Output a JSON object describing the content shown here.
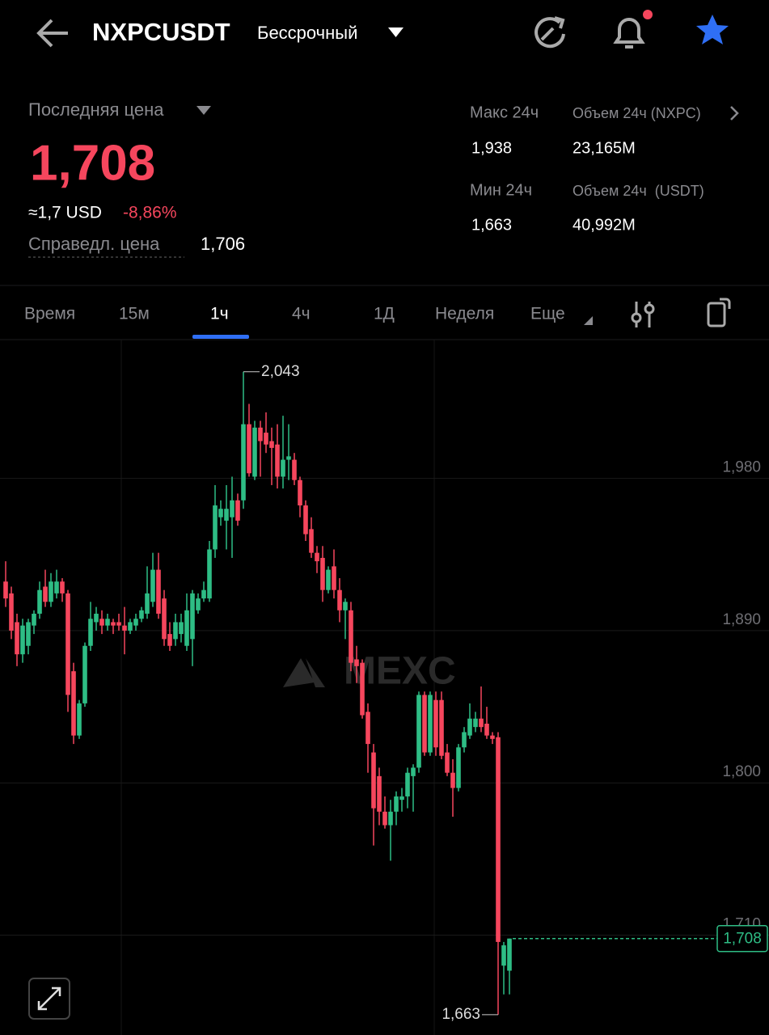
{
  "header": {
    "symbol": "NXPCUSDT",
    "contract": "Бессрочный"
  },
  "price": {
    "label": "Последняя цена",
    "last": "1,708",
    "usd": "≈1,7 USD",
    "change": "-8,86%",
    "fair_label": "Справедл. цена",
    "fair": "1,706"
  },
  "stats": [
    {
      "label": "Макс 24ч",
      "value": "1,938"
    },
    {
      "label": "Объем 24ч (NXPC)",
      "value": "23,165M"
    },
    {
      "label": "Мин 24ч",
      "value": "1,663"
    },
    {
      "label": "Объем 24ч  (USDT)",
      "value": "40,992M"
    }
  ],
  "tabs": [
    "Время",
    "15м",
    "1ч",
    "4ч",
    "1Д",
    "Неделя",
    "Еще"
  ],
  "chart_data": {
    "type": "candlestick",
    "watermark": "MEXC",
    "grid": true,
    "up_color": "#2ebd85",
    "down_color": "#f6465d",
    "ylim": [
      1.651,
      2.062
    ],
    "yticks": [
      {
        "value": 1.71,
        "label": "1,710"
      },
      {
        "value": 1.8,
        "label": "1,800"
      },
      {
        "value": 1.89,
        "label": "1,890"
      },
      {
        "value": 1.98,
        "label": "1,980"
      }
    ],
    "open": [
      1.919,
      1.912,
      1.895,
      1.876,
      1.881,
      1.893,
      1.9,
      1.916,
      1.907,
      1.912,
      1.919,
      1.912,
      1.866,
      1.828,
      1.847,
      1.881,
      1.895,
      1.897,
      1.893,
      1.895,
      1.895,
      1.893,
      1.89,
      1.893,
      1.897,
      1.9,
      1.907,
      1.926,
      1.909,
      1.888,
      1.885,
      1.888,
      1.881,
      1.885,
      1.902,
      1.909,
      1.909,
      1.938,
      1.957,
      1.955,
      1.957,
      1.967,
      1.967,
      2.012,
      1.981,
      2.01,
      2.007,
      2.002,
      2.0,
      1.981,
      1.991,
      1.991,
      1.979,
      1.964,
      1.95,
      1.936,
      1.933,
      1.914,
      1.928,
      1.914,
      1.902,
      1.902,
      1.873,
      1.871,
      1.842,
      1.818,
      1.804,
      1.783,
      1.775,
      1.783,
      1.79,
      1.792,
      1.804,
      1.809,
      1.852,
      1.818,
      1.849,
      1.849,
      1.818,
      1.806,
      1.797,
      1.821,
      1.828,
      1.833,
      1.838,
      1.835,
      1.828,
      1.827,
      1.692,
      1.689
    ],
    "high": [
      1.931,
      1.916,
      1.9,
      1.897,
      1.897,
      1.902,
      1.919,
      1.926,
      1.924,
      1.926,
      1.921,
      1.914,
      1.871,
      1.849,
      1.883,
      1.907,
      1.904,
      1.902,
      1.9,
      1.897,
      1.9,
      1.904,
      1.897,
      1.9,
      1.904,
      1.928,
      1.936,
      1.936,
      1.914,
      1.895,
      1.9,
      1.9,
      1.912,
      1.914,
      1.912,
      1.919,
      1.943,
      1.976,
      1.967,
      1.976,
      1.981,
      1.971,
      2.043,
      2.024,
      2.014,
      2.014,
      2.019,
      2.01,
      2.012,
      2.017,
      2.012,
      1.995,
      1.981,
      1.967,
      1.957,
      1.94,
      1.94,
      1.928,
      1.938,
      1.921,
      1.909,
      1.907,
      1.881,
      1.873,
      1.847,
      1.823,
      1.809,
      1.792,
      1.79,
      1.795,
      1.797,
      1.809,
      1.811,
      1.854,
      1.854,
      1.854,
      1.854,
      1.854,
      1.823,
      1.814,
      1.823,
      1.833,
      1.847,
      1.842,
      1.857,
      1.845,
      1.83,
      1.83,
      1.706,
      1.708
    ],
    "low": [
      1.904,
      1.885,
      1.869,
      1.871,
      1.876,
      1.888,
      1.897,
      1.904,
      1.904,
      1.909,
      1.907,
      1.842,
      1.823,
      1.826,
      1.845,
      1.878,
      1.89,
      1.888,
      1.89,
      1.888,
      1.89,
      1.876,
      1.888,
      1.89,
      1.895,
      1.897,
      1.904,
      1.897,
      1.881,
      1.878,
      1.881,
      1.883,
      1.878,
      1.869,
      1.9,
      1.907,
      1.907,
      1.933,
      1.952,
      1.938,
      1.933,
      1.952,
      1.962,
      1.981,
      1.979,
      1.981,
      1.995,
      1.976,
      1.974,
      1.974,
      1.979,
      1.976,
      1.957,
      1.943,
      1.933,
      1.924,
      1.907,
      1.912,
      1.909,
      1.895,
      1.885,
      1.866,
      1.859,
      1.838,
      1.806,
      1.763,
      1.775,
      1.773,
      1.754,
      1.775,
      1.783,
      1.785,
      1.783,
      1.806,
      1.816,
      1.816,
      1.816,
      1.814,
      1.804,
      1.78,
      1.795,
      1.818,
      1.826,
      1.83,
      1.83,
      1.826,
      1.823,
      1.663,
      1.675,
      1.675
    ],
    "close": [
      1.909,
      1.89,
      1.876,
      1.893,
      1.895,
      1.9,
      1.914,
      1.907,
      1.919,
      1.919,
      1.912,
      1.852,
      1.828,
      1.847,
      1.881,
      1.897,
      1.9,
      1.893,
      1.897,
      1.893,
      1.893,
      1.89,
      1.895,
      1.897,
      1.902,
      1.912,
      1.926,
      1.9,
      1.885,
      1.881,
      1.895,
      1.895,
      1.902,
      1.912,
      1.909,
      1.914,
      1.938,
      1.964,
      1.962,
      1.962,
      1.967,
      1.955,
      2.012,
      1.983,
      2.01,
      2.002,
      2.0,
      1.998,
      1.981,
      1.991,
      1.993,
      1.979,
      1.964,
      1.947,
      1.936,
      1.931,
      1.914,
      1.926,
      1.914,
      1.902,
      1.907,
      1.871,
      1.869,
      1.84,
      1.823,
      1.785,
      1.783,
      1.775,
      1.783,
      1.792,
      1.792,
      1.806,
      1.809,
      1.852,
      1.818,
      1.852,
      1.821,
      1.816,
      1.806,
      1.797,
      1.821,
      1.83,
      1.838,
      1.838,
      1.833,
      1.828,
      1.826,
      1.706,
      1.704,
      1.708
    ],
    "annotations": [
      {
        "value": 2.043,
        "label": "2,043"
      },
      {
        "value": 1.663,
        "label": "1,663"
      }
    ],
    "last_price": {
      "value": 1.708,
      "label": "1,708"
    }
  }
}
